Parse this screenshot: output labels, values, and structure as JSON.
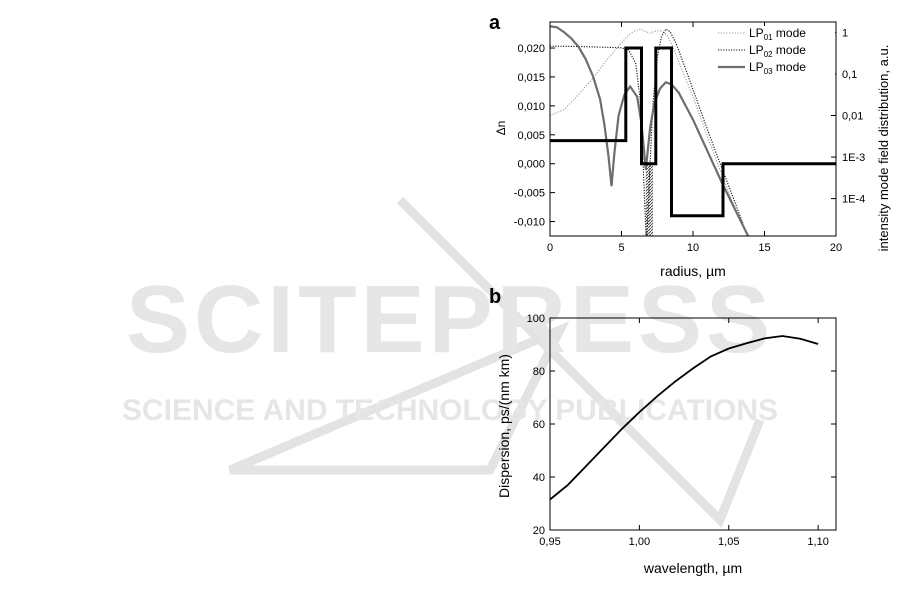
{
  "watermark": {
    "main_text": "SCITEPRESS",
    "sub_text": "SCIENCE AND TECHNOLOGY PUBLICATIONS",
    "color": "#e3e3e3"
  },
  "chart_data": [
    {
      "panel_label": "a",
      "type": "line",
      "xlabel": "radius, µm",
      "ylabel_left": "Δn",
      "ylabel_right": "intensity mode field distribution, a.u.",
      "xlim": [
        0,
        20
      ],
      "ylim_left": [
        -0.0125,
        0.0245
      ],
      "ylim_right_log10": [
        -4.9,
        0.25
      ],
      "x_ticks": [
        "0",
        "5",
        "10",
        "15",
        "20"
      ],
      "y_ticks_left": [
        "-0,010",
        "-0,005",
        "0,000",
        "0,005",
        "0,010",
        "0,015",
        "0,020"
      ],
      "y_ticks_right": [
        "1E-4",
        "1E-3",
        "0,01",
        "0,1",
        "1"
      ],
      "legend": {
        "placement": "top-right",
        "entries": [
          {
            "prefix": "LP",
            "sub": "01",
            "suffix": " mode",
            "style": "dotted-light"
          },
          {
            "prefix": "LP",
            "sub": "02",
            "suffix": " mode",
            "style": "dotted-dark"
          },
          {
            "prefix": "LP",
            "sub": "03",
            "suffix": " mode",
            "style": "solid-gray"
          }
        ]
      },
      "index_profile": {
        "x": [
          0,
          5.3,
          5.3,
          6.4,
          6.4,
          7.4,
          7.4,
          8.5,
          8.5,
          12.1,
          12.1,
          20
        ],
        "y": [
          0.004,
          0.004,
          0.02,
          0.02,
          0.0,
          0.0,
          0.02,
          0.02,
          -0.009,
          -0.009,
          0.0,
          0.0
        ]
      },
      "series": [
        {
          "name": "LP01 mode",
          "axis": "right",
          "x": [
            0,
            1,
            2,
            3,
            4,
            5,
            5.5,
            6,
            6.3,
            6.6,
            7,
            7.4,
            7.8,
            8.2,
            8.6,
            9,
            10,
            11,
            12,
            13,
            14
          ],
          "log10_y": [
            -2.0,
            -1.85,
            -1.5,
            -1.1,
            -0.65,
            -0.25,
            -0.06,
            0.05,
            0.08,
            0.03,
            -0.02,
            0.03,
            0.04,
            -0.08,
            -0.35,
            -0.7,
            -1.55,
            -2.5,
            -3.4,
            -4.3,
            -5.0
          ]
        },
        {
          "name": "LP02 mode",
          "axis": "right",
          "x": [
            0,
            2,
            4,
            5,
            5.5,
            6,
            6.3,
            6.55,
            6.75,
            6.95,
            7.2,
            7.5,
            7.8,
            8.1,
            8.4,
            8.8,
            9.5,
            10.5,
            11.5,
            12.5,
            13.5
          ],
          "log10_y": [
            -0.33,
            -0.34,
            -0.36,
            -0.37,
            -0.42,
            -0.75,
            -1.6,
            -3.5,
            -5.2,
            -3.5,
            -1.7,
            -0.6,
            -0.1,
            0.08,
            0.02,
            -0.25,
            -0.9,
            -1.85,
            -2.8,
            -3.7,
            -4.6
          ]
        },
        {
          "name": "LP03 mode",
          "axis": "right",
          "x": [
            0,
            0.5,
            1,
            1.5,
            2,
            2.5,
            3,
            3.5,
            3.8,
            4.1,
            4.3,
            4.5,
            4.8,
            5.2,
            5.6,
            6.1,
            6.4,
            6.7,
            7.0,
            7.3,
            7.7,
            8.1,
            8.5,
            9,
            10,
            11,
            12,
            13,
            14
          ],
          "log10_y": [
            0.15,
            0.12,
            0.0,
            -0.15,
            -0.35,
            -0.65,
            -1.05,
            -1.6,
            -2.2,
            -3.0,
            -3.7,
            -2.9,
            -2.0,
            -1.5,
            -1.3,
            -1.55,
            -2.2,
            -3.3,
            -2.3,
            -1.7,
            -1.35,
            -1.2,
            -1.25,
            -1.45,
            -2.1,
            -2.85,
            -3.6,
            -4.3,
            -5.0
          ]
        }
      ]
    },
    {
      "panel_label": "b",
      "type": "line",
      "xlabel": "wavelength, µm",
      "ylabel": "Dispersion, ps/(nm km)",
      "xlim": [
        0.95,
        1.11
      ],
      "ylim": [
        20,
        100
      ],
      "x_ticks": [
        "0,95",
        "1,00",
        "1,05",
        "1,10"
      ],
      "y_ticks": [
        "20",
        "40",
        "60",
        "80",
        "100"
      ],
      "series": [
        {
          "name": "",
          "x": [
            0.95,
            0.96,
            0.97,
            0.98,
            0.99,
            1.0,
            1.01,
            1.02,
            1.03,
            1.04,
            1.05,
            1.06,
            1.07,
            1.08,
            1.09,
            1.1
          ],
          "y": [
            31.5,
            37,
            44,
            51,
            58,
            64.5,
            70.5,
            76,
            81,
            85.5,
            88.5,
            90.5,
            92.3,
            93.2,
            92.2,
            90.2
          ]
        }
      ]
    }
  ]
}
